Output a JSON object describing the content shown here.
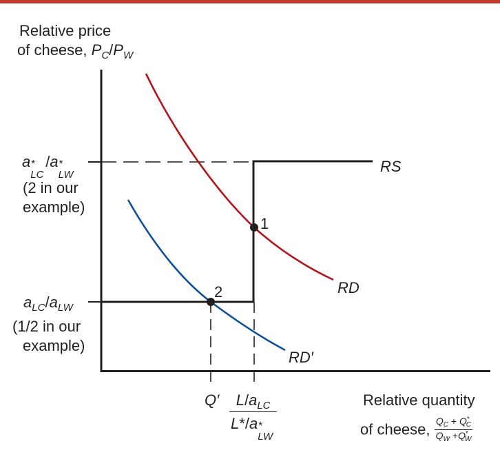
{
  "y_axis": {
    "line1": "Relative price",
    "line2_prefix": "of cheese, ",
    "symbol_num": "P",
    "symbol_num_sub": "C",
    "slash": "/",
    "symbol_den": "P",
    "symbol_den_sub": "W"
  },
  "x_axis": {
    "line1": "Relative quantity",
    "line2_prefix": "of cheese, ",
    "frac_num": "Q",
    "frac_num_sub1": "C",
    "frac_plus": " + ",
    "frac_num2": "Q",
    "frac_num2_sup": "*",
    "frac_num2_sub": "C",
    "frac_den": "Q",
    "frac_den_sub1": "W",
    "frac_den_plus": " +",
    "frac_den2": "Q",
    "frac_den2_sup": "*",
    "frac_den2_sub": "W"
  },
  "upper_level": {
    "a": "a",
    "sub_num": "LC",
    "star": "*",
    "slash": "/",
    "sub_den": "LW",
    "note_line1": "(2 in our",
    "note_line2": "example)"
  },
  "lower_level": {
    "a": "a",
    "sub_num": "LC",
    "slash": "/",
    "sub_den": "LW",
    "note_line1": "(1/2 in our",
    "note_line2": "example)"
  },
  "tick_q_prime": "Q′",
  "tick_ratio": {
    "num_L": "L",
    "num_slash": "/",
    "num_a": "a",
    "num_sub": "LC",
    "den_L": "L",
    "den_star": "*",
    "den_slash": "/",
    "den_a": "a",
    "den_star2": "*",
    "den_sub": "LW"
  },
  "curves": {
    "rs": "RS",
    "rd": "RD",
    "rd_prime": "RD′"
  },
  "points": {
    "p1": "1",
    "p2": "2"
  },
  "colors": {
    "top_rule": "#c0392b",
    "axis": "#231f20",
    "rd": "#b5121b",
    "rd_prime": "#0b4f9c",
    "rs": "#231f20"
  }
}
